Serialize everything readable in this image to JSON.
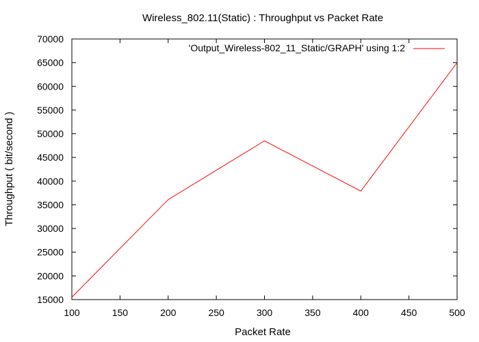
{
  "chart_data": {
    "type": "line",
    "title": "Wireless_802.11(Static) : Throughput vs Packet Rate",
    "xlabel": "Packet Rate",
    "ylabel": "Throughput ( bit/second )",
    "xlim": [
      100,
      500
    ],
    "ylim": [
      15000,
      70000
    ],
    "x_ticks": [
      100,
      150,
      200,
      250,
      300,
      350,
      400,
      450,
      500
    ],
    "y_ticks": [
      15000,
      20000,
      25000,
      30000,
      35000,
      40000,
      45000,
      50000,
      55000,
      60000,
      65000,
      70000
    ],
    "grid": false,
    "legend_position": "top-right",
    "series": [
      {
        "name": "'Output_Wireless-802_11_Static/GRAPH' using 1:2",
        "color": "#ff0000",
        "x": [
          100,
          200,
          300,
          400,
          500
        ],
        "y": [
          15500,
          36100,
          48500,
          37900,
          65000
        ]
      }
    ]
  }
}
